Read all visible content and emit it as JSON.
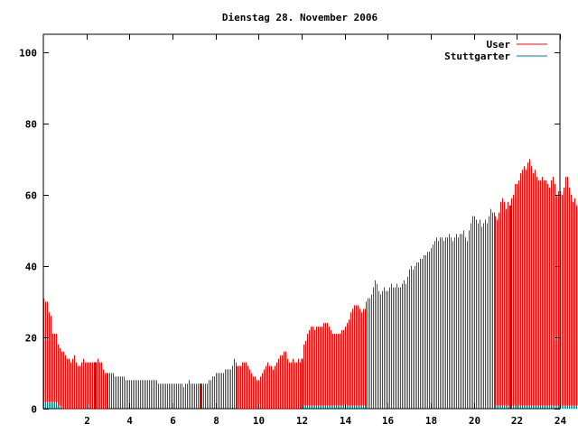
{
  "chart_data": {
    "type": "bar",
    "title": "Dienstag 28. November 2006",
    "xlabel": "",
    "ylabel": "",
    "xlim": [
      0,
      24
    ],
    "ylim": [
      0,
      105
    ],
    "xticks": [
      2,
      4,
      6,
      8,
      10,
      12,
      14,
      16,
      18,
      20,
      22,
      24
    ],
    "yticks": [
      0,
      20,
      40,
      60,
      80,
      100
    ],
    "grid": false,
    "legend_position": "top-right",
    "series": [
      {
        "name": "User",
        "color": "#ff0000",
        "interval_hours": 0.083333,
        "values": [
          31,
          30,
          30,
          27,
          26,
          21,
          21,
          21,
          18,
          17,
          16,
          16,
          15,
          14,
          14,
          13,
          14,
          15,
          13,
          12,
          12,
          13,
          14,
          13,
          13,
          13,
          13,
          13,
          13,
          13,
          14,
          13,
          13,
          11,
          10,
          10,
          10,
          10,
          10,
          10,
          9,
          9,
          9,
          9,
          9,
          9,
          8,
          8,
          8,
          8,
          8,
          8,
          8,
          8,
          8,
          8,
          8,
          8,
          8,
          8,
          8,
          8,
          8,
          8,
          7,
          7,
          7,
          7,
          7,
          7,
          7,
          7,
          7,
          7,
          7,
          7,
          7,
          7,
          6,
          7,
          7,
          8,
          7,
          7,
          7,
          7,
          7,
          7,
          7,
          7,
          7,
          7,
          8,
          8,
          9,
          9,
          10,
          10,
          10,
          10,
          10,
          11,
          11,
          11,
          11,
          12,
          14,
          13,
          12,
          12,
          12,
          13,
          13,
          13,
          12,
          11,
          10,
          9,
          9,
          8,
          8,
          9,
          10,
          11,
          12,
          13,
          12,
          12,
          11,
          12,
          13,
          14,
          15,
          15,
          16,
          16,
          14,
          13,
          13,
          14,
          13,
          13,
          14,
          13,
          14,
          18,
          19,
          21,
          22,
          23,
          23,
          22,
          23,
          23,
          23,
          23,
          24,
          24,
          24,
          23,
          22,
          21,
          21,
          21,
          21,
          21,
          22,
          22,
          23,
          24,
          25,
          27,
          28,
          29,
          29,
          29,
          28,
          27,
          28,
          28,
          30,
          31,
          31,
          32,
          34,
          36,
          35,
          33,
          32,
          33,
          34,
          33,
          33,
          34,
          35,
          34,
          34,
          35,
          34,
          34,
          35,
          36,
          35,
          37,
          39,
          40,
          39,
          40,
          41,
          41,
          42,
          42,
          43,
          43,
          44,
          44,
          45,
          46,
          47,
          48,
          47,
          48,
          48,
          47,
          48,
          48,
          49,
          48,
          47,
          48,
          49,
          48,
          49,
          49,
          50,
          48,
          47,
          50,
          52,
          54,
          54,
          53,
          52,
          53,
          51,
          52,
          53,
          52,
          54,
          56,
          55,
          55,
          54,
          53,
          55,
          58,
          59,
          58,
          56,
          58,
          57,
          59,
          60,
          63,
          63,
          64,
          66,
          67,
          68,
          67,
          69,
          70,
          68,
          66,
          67,
          65,
          64,
          64,
          65,
          64,
          64,
          63,
          62,
          64,
          65,
          63,
          60,
          61,
          61,
          60,
          62,
          65,
          65,
          62,
          60,
          58,
          59,
          57,
          56,
          55,
          52,
          51,
          51,
          50,
          51,
          51,
          49,
          47,
          45,
          42
        ]
      },
      {
        "name": "Stuttgarter",
        "color": "#008080",
        "interval_hours": 0.083333,
        "values": [
          2,
          2,
          2,
          2,
          2,
          2,
          2,
          2,
          1,
          1,
          0,
          0,
          0,
          0,
          0,
          0,
          0,
          0,
          0,
          0,
          0,
          0,
          0,
          0,
          0,
          0,
          0,
          0,
          0,
          0,
          0,
          0,
          0,
          0,
          0,
          0,
          0,
          0,
          0,
          0,
          0,
          0,
          0,
          0,
          0,
          0,
          0,
          0,
          0,
          0,
          0,
          0,
          0,
          0,
          0,
          0,
          0,
          0,
          0,
          0,
          0,
          0,
          0,
          0,
          0,
          0,
          0,
          0,
          0,
          0,
          0,
          0,
          0,
          0,
          0,
          0,
          0,
          0,
          0,
          0,
          0,
          0,
          0,
          0,
          0,
          0,
          0,
          0,
          0,
          0,
          0,
          0,
          0,
          0,
          0,
          0,
          0,
          0,
          0,
          0,
          0,
          0,
          0,
          0,
          0,
          0,
          0,
          0,
          0,
          0,
          0,
          0,
          0,
          0,
          0,
          0,
          0,
          0,
          0,
          0,
          0,
          0,
          0,
          0,
          0,
          0,
          0,
          0,
          0,
          0,
          0,
          0,
          0,
          0,
          0,
          0,
          0,
          0,
          0,
          0,
          0,
          0,
          0,
          0,
          1,
          1,
          1,
          1,
          1,
          1,
          1,
          1,
          1,
          1,
          1,
          1,
          1,
          1,
          1,
          1,
          1,
          1,
          1,
          1,
          1,
          1,
          1,
          1,
          1,
          1,
          1,
          1,
          1,
          1,
          1,
          1,
          1,
          1,
          1,
          1,
          1,
          1,
          1,
          1,
          1,
          1,
          1,
          1,
          1,
          1,
          1,
          1,
          1,
          1,
          1,
          1,
          1,
          0,
          0,
          0,
          0,
          0,
          0,
          0,
          0,
          0,
          0,
          0,
          0,
          0,
          0,
          0,
          0,
          0,
          0,
          0,
          0,
          0,
          0,
          0,
          0,
          0,
          0,
          0,
          0,
          0,
          0,
          0,
          0,
          0,
          0,
          0,
          0,
          0,
          0,
          0,
          0,
          0,
          0,
          0,
          1,
          1,
          1,
          1,
          1,
          1,
          1,
          1,
          1,
          1,
          1,
          1,
          1,
          1,
          1,
          1,
          1,
          1,
          1,
          1,
          1,
          1,
          1,
          1,
          1,
          1,
          1,
          1,
          1,
          1,
          1,
          1,
          1,
          1,
          1,
          1,
          1,
          1,
          1,
          1,
          1,
          1,
          1,
          1,
          1,
          1,
          1,
          1,
          1,
          1,
          1,
          1,
          1,
          1,
          1,
          1,
          1,
          1,
          1,
          1,
          1,
          1,
          1,
          1
        ]
      }
    ],
    "highlight_bar_hours": [
      2.4,
      7.3,
      12.0,
      21.7
    ],
    "highlight_color": "#cc0000"
  }
}
